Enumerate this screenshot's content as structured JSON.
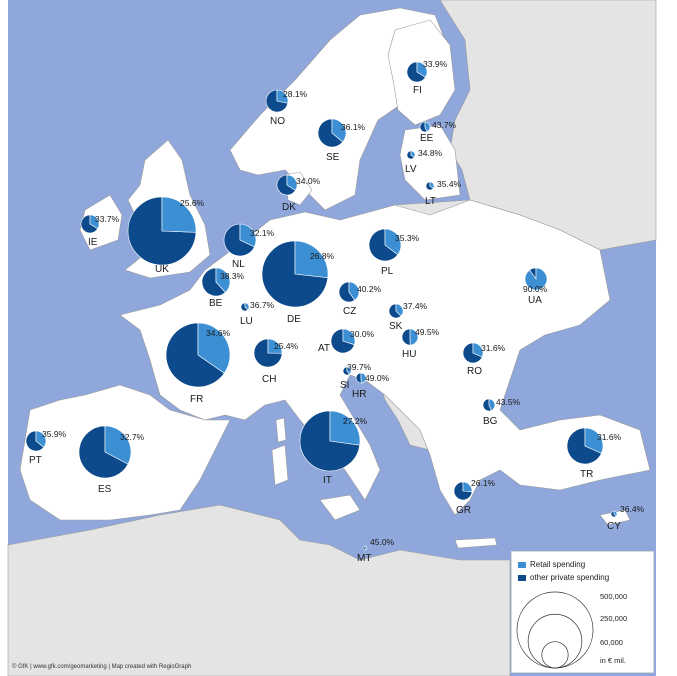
{
  "colors": {
    "sea": "#8fa7da",
    "land_in_scope": "#ffffff",
    "land_outside": "#e4e4e4",
    "border": "#9a9a9a",
    "retail": "#3b8fd2",
    "other": "#0d4a8c"
  },
  "legend": {
    "retail_label": "Retail spending",
    "other_label": "other private spending",
    "sizes": [
      {
        "value": 500000,
        "label": "500,000"
      },
      {
        "value": 250000,
        "label": "250,000"
      },
      {
        "value": 60000,
        "label": "60,000"
      }
    ],
    "unit": "in € mil."
  },
  "credit": "© GfK | www.gfk.com/geomarketing | Map created with RegioGraph",
  "countries": [
    {
      "code": "NO",
      "pct_label": "28.1%",
      "retail_share": 0.281
    },
    {
      "code": "FI",
      "pct_label": "33.9%",
      "retail_share": 0.339
    },
    {
      "code": "SE",
      "pct_label": "36.1%",
      "retail_share": 0.361
    },
    {
      "code": "EE",
      "pct_label": "43.7%",
      "retail_share": 0.437
    },
    {
      "code": "LV",
      "pct_label": "34.8%",
      "retail_share": 0.348
    },
    {
      "code": "LT",
      "pct_label": "35.4%",
      "retail_share": 0.354
    },
    {
      "code": "DK",
      "pct_label": "34.0%",
      "retail_share": 0.34
    },
    {
      "code": "IE",
      "pct_label": "33.7%",
      "retail_share": 0.337
    },
    {
      "code": "UK",
      "pct_label": "25.6%",
      "retail_share": 0.256
    },
    {
      "code": "NL",
      "pct_label": "32.1%",
      "retail_share": 0.321
    },
    {
      "code": "BE",
      "pct_label": "38.3%",
      "retail_share": 0.383
    },
    {
      "code": "LU",
      "pct_label": "36.7%",
      "retail_share": 0.367
    },
    {
      "code": "DE",
      "pct_label": "26.8%",
      "retail_share": 0.268
    },
    {
      "code": "PL",
      "pct_label": "35.3%",
      "retail_share": 0.353
    },
    {
      "code": "CZ",
      "pct_label": "40.2%",
      "retail_share": 0.402
    },
    {
      "code": "SK",
      "pct_label": "37.4%",
      "retail_share": 0.374
    },
    {
      "code": "UA",
      "pct_label": "90.0%",
      "retail_share": 0.9
    },
    {
      "code": "AT",
      "pct_label": "30.0%",
      "retail_share": 0.3
    },
    {
      "code": "HU",
      "pct_label": "49.5%",
      "retail_share": 0.495
    },
    {
      "code": "CH",
      "pct_label": "25.4%",
      "retail_share": 0.254
    },
    {
      "code": "FR",
      "pct_label": "34.6%",
      "retail_share": 0.346
    },
    {
      "code": "SI",
      "pct_label": "39.7%",
      "retail_share": 0.397
    },
    {
      "code": "HR",
      "pct_label": "49.0%",
      "retail_share": 0.49
    },
    {
      "code": "RO",
      "pct_label": "31.6%",
      "retail_share": 0.316
    },
    {
      "code": "BG",
      "pct_label": "43.5%",
      "retail_share": 0.435
    },
    {
      "code": "PT",
      "pct_label": "35.9%",
      "retail_share": 0.359
    },
    {
      "code": "ES",
      "pct_label": "32.7%",
      "retail_share": 0.327
    },
    {
      "code": "IT",
      "pct_label": "27.2%",
      "retail_share": 0.272
    },
    {
      "code": "TR",
      "pct_label": "31.6%",
      "retail_share": 0.316
    },
    {
      "code": "GR",
      "pct_label": "26.1%",
      "retail_share": 0.261
    },
    {
      "code": "CY",
      "pct_label": "36.4%",
      "retail_share": 0.364
    },
    {
      "code": "MT",
      "pct_label": "45.0%",
      "retail_share": 0.45
    }
  ]
}
